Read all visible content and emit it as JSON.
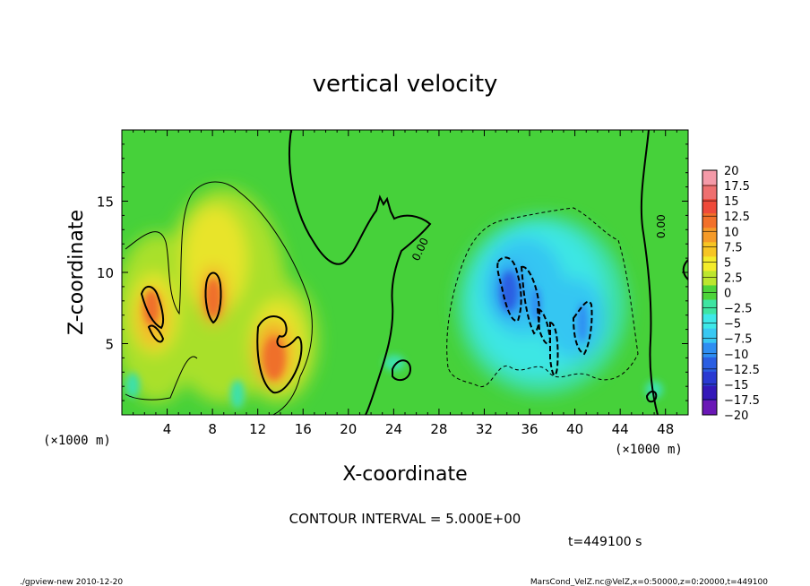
{
  "chart_data": {
    "type": "heatmap",
    "title": "vertical velocity",
    "xlabel": "X-coordinate",
    "ylabel": "Z-coordinate",
    "x_unit": "(×1000 m)",
    "y_unit": "(×1000 m)",
    "xlim": [
      0,
      50
    ],
    "ylim": [
      0,
      20
    ],
    "xticks": [
      4,
      8,
      12,
      16,
      20,
      24,
      28,
      32,
      36,
      40,
      44,
      48
    ],
    "yticks": [
      5,
      10,
      15
    ],
    "contour_labels": [
      "0.00",
      "0.00"
    ],
    "colorbar": {
      "labels": [
        "20",
        "17.5",
        "15",
        "12.5",
        "10",
        "7.5",
        "5",
        "2.5",
        "0",
        "−2.5",
        "−5",
        "−7.5",
        "−10",
        "−12.5",
        "−15",
        "−17.5",
        "−20"
      ],
      "colors": [
        "#f49aa8",
        "#ee6f6f",
        "#ee4a3a",
        "#f2702a",
        "#f59a28",
        "#f7c523",
        "#f4ec2a",
        "#bce62e",
        "#4dd43a",
        "#3ee4a2",
        "#3ee8e8",
        "#38c8f2",
        "#2e8ef2",
        "#2a5ee2",
        "#2a3ad2",
        "#3418b8",
        "#6a18b6"
      ]
    },
    "features": [
      {
        "name": "updraft-core-1",
        "x": 2.7,
        "z": 6.5,
        "value": 12.5
      },
      {
        "name": "updraft-core-2",
        "x": 8.1,
        "z": 8.5,
        "value": 12.5
      },
      {
        "name": "updraft-core-3",
        "x": 13.5,
        "z": 4.5,
        "value": 12.5
      },
      {
        "name": "downdraft-core-1",
        "x": 34.0,
        "z": 8.0,
        "value": -12.5
      },
      {
        "name": "downdraft-core-2",
        "x": 36.5,
        "z": 6.5,
        "value": -10
      },
      {
        "name": "downdraft-core-3",
        "x": 40.5,
        "z": 5.5,
        "value": -10
      }
    ]
  },
  "annotations": {
    "contour_interval": "CONTOUR INTERVAL = 5.000E+00",
    "time": "t=449100 s",
    "footer_left": "./gpview-new  2010-12-20",
    "footer_right": "MarsCond_VelZ.nc@VelZ,x=0:50000,z=0:20000,t=449100"
  }
}
